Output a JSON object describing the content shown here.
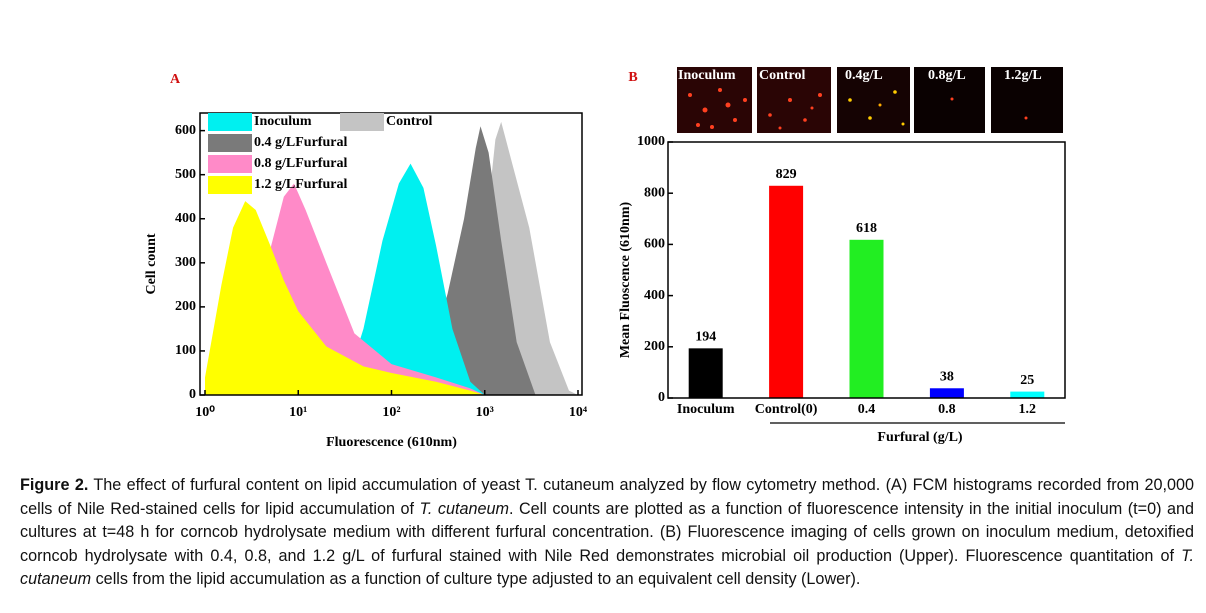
{
  "chart_data": [
    {
      "type": "area",
      "panel_label": "A",
      "x_label": "Fluorescence (610nm)",
      "y_label": "Cell count",
      "log_x": true,
      "xlim": [
        1,
        10000
      ],
      "xticks": [
        {
          "value": 1,
          "label": "10⁰"
        },
        {
          "value": 10,
          "label": "10¹"
        },
        {
          "value": 100,
          "label": "10²"
        },
        {
          "value": 1000,
          "label": "10³"
        },
        {
          "value": 10000,
          "label": "10⁴"
        }
      ],
      "ylim": [
        0,
        640
      ],
      "yticks": [
        0,
        100,
        200,
        300,
        400,
        500,
        600
      ],
      "grid": false,
      "series": [
        {
          "name": "Control",
          "color": "#c4c4c4",
          "x": [
            700,
            1000,
            1300,
            1500,
            2000,
            3000,
            5000,
            8000,
            10000
          ],
          "values": [
            0,
            350,
            580,
            620,
            520,
            380,
            120,
            10,
            0
          ]
        },
        {
          "name": "0.4 g/LFurfural",
          "color": "#7a7a7a",
          "x": [
            150,
            250,
            400,
            600,
            800,
            900,
            1100,
            1500,
            2200,
            3500
          ],
          "values": [
            0,
            80,
            230,
            400,
            560,
            610,
            550,
            350,
            120,
            0
          ]
        },
        {
          "name": "Inoculum",
          "color": "#00f0f0",
          "x": [
            30,
            50,
            80,
            120,
            160,
            220,
            300,
            450,
            700,
            1000
          ],
          "values": [
            0,
            150,
            350,
            480,
            525,
            470,
            340,
            150,
            30,
            0
          ]
        },
        {
          "name": "0.8 g/LFurfural",
          "color": "#ff8ac8",
          "x": [
            1,
            2,
            3,
            5,
            7,
            9,
            12,
            20,
            40,
            100,
            300,
            700,
            1000
          ],
          "values": [
            0,
            60,
            140,
            330,
            450,
            480,
            420,
            300,
            140,
            70,
            40,
            15,
            0
          ]
        },
        {
          "name": "1.2 g/LFurfural",
          "color": "#ffff00",
          "x": [
            1,
            1.5,
            2,
            2.7,
            3.5,
            5,
            7,
            10,
            20,
            50,
            100,
            300,
            700,
            1000
          ],
          "values": [
            40,
            250,
            380,
            440,
            420,
            340,
            260,
            190,
            110,
            65,
            50,
            30,
            10,
            0
          ]
        }
      ]
    },
    {
      "type": "bar",
      "panel_label": "B",
      "x_label": "Furfural (g/L)",
      "y_label": "Mean Fluoscence (610nm)",
      "image_labels": [
        "Inoculum",
        "Control",
        "0.4g/L",
        "0.8g/L",
        "1.2g/L"
      ],
      "categories": [
        "Inoculum",
        "Control(0)",
        "0.4",
        "0.8",
        "1.2"
      ],
      "values": [
        194,
        829,
        618,
        38,
        25
      ],
      "colors": [
        "#000000",
        "#ff0000",
        "#22ee22",
        "#0000ff",
        "#00ffff"
      ],
      "ylim": [
        0,
        1000
      ],
      "yticks": [
        0,
        200,
        400,
        600,
        800,
        1000
      ],
      "grid": false
    }
  ],
  "caption": {
    "label": "Figure 2.",
    "parts": [
      " The effect of furfural content on lipid accumulation of yeast T. cutaneum analyzed by flow cytometry method. (A) FCM histograms recorded from 20,000 cells of Nile Red-stained cells for lipid accumulation of ",
      "T. cutaneum",
      ". Cell counts are plotted as a function of fluorescence intensity in the initial inoculum (t=0) and cultures at t=48 h for corncob hydrolysate medium with different furfural concentration. (B) Fluorescence imaging of cells grown on inoculum medium, detoxified corncob hydrolysate with 0.4, 0.8, and 1.2 g/L of furfural stained with Nile Red demonstrates microbial oil production (Upper). Fluorescence quantitation of ",
      "T. cutaneum",
      " cells from the lipid accumulation as a function of culture type adjusted to an equivalent cell density (Lower)."
    ]
  }
}
